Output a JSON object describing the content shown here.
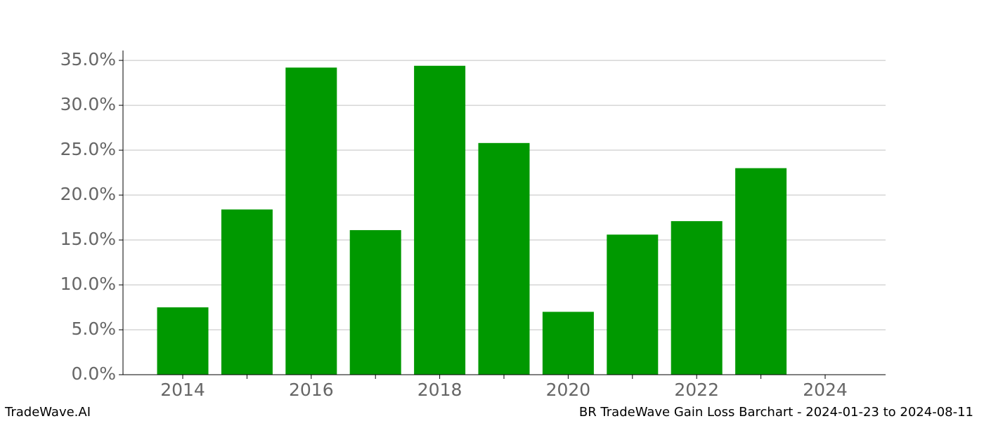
{
  "chart_data": {
    "type": "bar",
    "categories": [
      "2014",
      null,
      "2016",
      null,
      "2018",
      null,
      "2020",
      null,
      "2022",
      null,
      "2024"
    ],
    "values": [
      7.5,
      18.4,
      34.2,
      16.1,
      34.4,
      25.8,
      7.0,
      15.6,
      17.1,
      23.0,
      null
    ],
    "color": "#009900",
    "ylim": [
      0,
      36.1
    ],
    "yticks": [
      {
        "value": 0,
        "label": "0.0%"
      },
      {
        "value": 5,
        "label": "5.0%"
      },
      {
        "value": 10,
        "label": "10.0%"
      },
      {
        "value": 15,
        "label": "15.0%"
      },
      {
        "value": 20,
        "label": "20.0%"
      },
      {
        "value": 25,
        "label": "25.0%"
      },
      {
        "value": 30,
        "label": "30.0%"
      },
      {
        "value": 35,
        "label": "35.0%"
      }
    ],
    "grid": true
  },
  "footer": {
    "left": "TradeWave.AI",
    "right": "BR TradeWave Gain Loss Barchart - 2024-01-23 to 2024-08-11"
  }
}
